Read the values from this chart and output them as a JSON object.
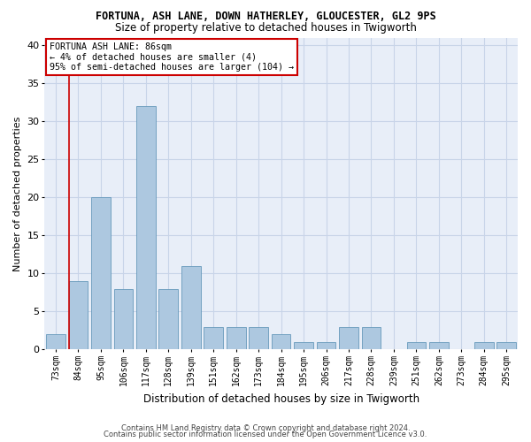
{
  "title1": "FORTUNA, ASH LANE, DOWN HATHERLEY, GLOUCESTER, GL2 9PS",
  "title2": "Size of property relative to detached houses in Twigworth",
  "xlabel": "Distribution of detached houses by size in Twigworth",
  "ylabel": "Number of detached properties",
  "categories": [
    "73sqm",
    "84sqm",
    "95sqm",
    "106sqm",
    "117sqm",
    "128sqm",
    "139sqm",
    "151sqm",
    "162sqm",
    "173sqm",
    "184sqm",
    "195sqm",
    "206sqm",
    "217sqm",
    "228sqm",
    "239sqm",
    "251sqm",
    "262sqm",
    "273sqm",
    "284sqm",
    "295sqm"
  ],
  "values": [
    2,
    9,
    20,
    8,
    32,
    8,
    11,
    3,
    3,
    3,
    2,
    1,
    1,
    3,
    3,
    0,
    1,
    1,
    0,
    1,
    1
  ],
  "bar_color": "#adc8e0",
  "bar_edge_color": "#6699bb",
  "annotation_text1": "FORTUNA ASH LANE: 86sqm",
  "annotation_text2": "← 4% of detached houses are smaller (4)",
  "annotation_text3": "95% of semi-detached houses are larger (104) →",
  "annotation_box_color": "#ffffff",
  "annotation_box_edge": "#cc0000",
  "vline_color": "#cc0000",
  "grid_color": "#c8d4e8",
  "background_color": "#e8eef8",
  "footer1": "Contains HM Land Registry data © Crown copyright and database right 2024.",
  "footer2": "Contains public sector information licensed under the Open Government Licence v3.0.",
  "ylim": [
    0,
    41
  ],
  "yticks": [
    0,
    5,
    10,
    15,
    20,
    25,
    30,
    35,
    40
  ],
  "vline_x": 0.58,
  "figsize": [
    6.0,
    5.0
  ],
  "dpi": 100
}
